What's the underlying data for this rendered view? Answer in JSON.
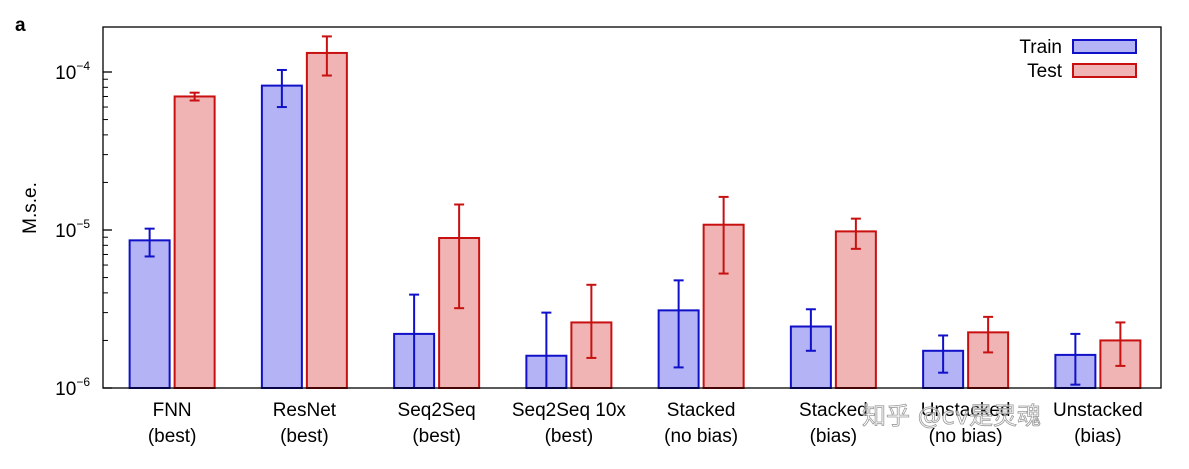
{
  "panel_label": "a",
  "watermark": "知乎 @cv是灵魂",
  "chart_data": {
    "type": "bar",
    "title": "",
    "xlabel": "",
    "ylabel": "M.s.e.",
    "yscale": "log",
    "ylim": [
      1e-06,
      0.0002
    ],
    "y_ticks": [
      {
        "value": 1e-06,
        "base": "10",
        "exp": "−6"
      },
      {
        "value": 1e-05,
        "base": "10",
        "exp": "−5"
      },
      {
        "value": 0.0001,
        "base": "10",
        "exp": "−4"
      }
    ],
    "categories": [
      {
        "line1": "FNN",
        "line2": "(best)"
      },
      {
        "line1": "ResNet",
        "line2": "(best)"
      },
      {
        "line1": "Seq2Seq",
        "line2": "(best)"
      },
      {
        "line1": "Seq2Seq 10x",
        "line2": "(best)"
      },
      {
        "line1": "Stacked",
        "line2": "(no bias)"
      },
      {
        "line1": "Stacked",
        "line2": "(bias)"
      },
      {
        "line1": "Unstacked",
        "line2": "(no bias)"
      },
      {
        "line1": "Unstacked",
        "line2": "(bias)"
      }
    ],
    "series": [
      {
        "name": "Train",
        "fill": "#b3b3f5",
        "stroke": "#1010c8",
        "values": [
          8.6e-06,
          8.2e-05,
          2.2e-06,
          1.6e-06,
          3.1e-06,
          2.45e-06,
          1.72e-06,
          1.62e-06
        ],
        "err_low": [
          6.8e-06,
          6e-05,
          1e-06,
          1e-06,
          1.35e-06,
          1.72e-06,
          1.25e-06,
          1.05e-06
        ],
        "err_high": [
          1.02e-05,
          0.000103,
          3.9e-06,
          3e-06,
          4.8e-06,
          3.15e-06,
          2.15e-06,
          2.2e-06
        ]
      },
      {
        "name": "Test",
        "fill": "#f0b4b4",
        "stroke": "#c81010",
        "values": [
          7e-05,
          0.000132,
          8.9e-06,
          2.6e-06,
          1.08e-05,
          9.8e-06,
          2.25e-06,
          2e-06
        ],
        "err_low": [
          6.6e-05,
          9.5e-05,
          3.2e-06,
          1.55e-06,
          5.3e-06,
          7.6e-06,
          1.68e-06,
          1.38e-06
        ],
        "err_high": [
          7.4e-05,
          0.000168,
          1.45e-05,
          4.5e-06,
          1.62e-05,
          1.18e-05,
          2.82e-06,
          2.6e-06
        ]
      }
    ],
    "legend": {
      "position": "top-right"
    },
    "grid": false
  }
}
